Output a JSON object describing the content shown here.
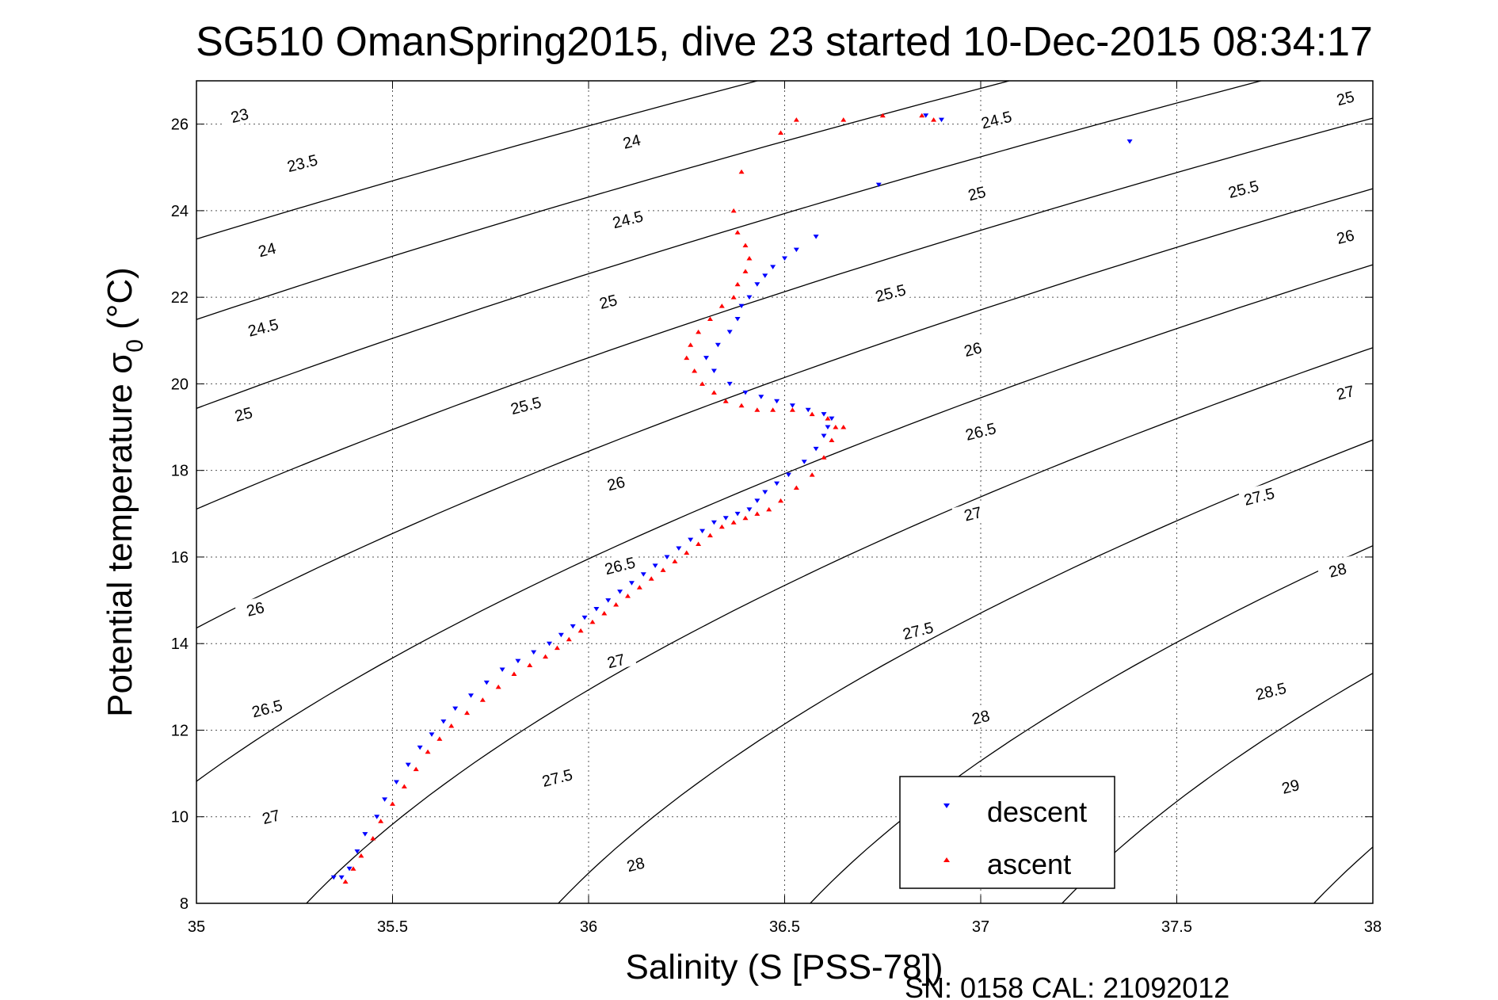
{
  "title": "SG510 OmanSpring2015, dive 23 started 10-Dec-2015 08:34:17",
  "footer": "SN: 0158  CAL: 21092012",
  "chart_data": {
    "type": "scatter",
    "title": "SG510 OmanSpring2015, dive 23 started 10-Dec-2015 08:34:17",
    "xlabel": "Salinity (S [PSS-78])",
    "ylabel_main": "Potential temperature σ",
    "ylabel_sub": "0",
    "ylabel_unit": " (°C)",
    "xlim": [
      35,
      38
    ],
    "ylim": [
      8,
      27
    ],
    "xticks": [
      35,
      35.5,
      36,
      36.5,
      37,
      37.5,
      38
    ],
    "xtick_labels": [
      "35",
      "35.5",
      "36",
      "36.5",
      "37",
      "37.5",
      "38"
    ],
    "yticks": [
      8,
      10,
      12,
      14,
      16,
      18,
      20,
      22,
      24,
      26
    ],
    "ytick_labels": [
      "8",
      "10",
      "12",
      "14",
      "16",
      "18",
      "20",
      "22",
      "24",
      "26"
    ],
    "grid": true,
    "legend_position": "bottom-right",
    "contour_levels": [
      23,
      23.5,
      24,
      24.5,
      25,
      25.5,
      26,
      26.5,
      27,
      27.5,
      28,
      28.5,
      29
    ],
    "contour_labels": [
      {
        "text": "23",
        "s": 35.11,
        "t": 26.2
      },
      {
        "text": "23.5",
        "s": 35.27,
        "t": 25.1
      },
      {
        "text": "24",
        "s": 35.18,
        "t": 23.1
      },
      {
        "text": "24.5",
        "s": 35.17,
        "t": 21.3
      },
      {
        "text": "25",
        "s": 35.12,
        "t": 19.3
      },
      {
        "text": "26",
        "s": 35.15,
        "t": 14.8
      },
      {
        "text": "26.5",
        "s": 35.18,
        "t": 12.5
      },
      {
        "text": "27",
        "s": 35.19,
        "t": 10.0
      },
      {
        "text": "24",
        "s": 36.11,
        "t": 25.6
      },
      {
        "text": "24.5",
        "s": 36.1,
        "t": 23.8
      },
      {
        "text": "25",
        "s": 36.05,
        "t": 21.9
      },
      {
        "text": "25.5",
        "s": 35.84,
        "t": 19.5
      },
      {
        "text": "26",
        "s": 36.07,
        "t": 17.7
      },
      {
        "text": "26.5",
        "s": 36.08,
        "t": 15.8
      },
      {
        "text": "27",
        "s": 36.07,
        "t": 13.6
      },
      {
        "text": "27.5",
        "s": 35.92,
        "t": 10.9
      },
      {
        "text": "28",
        "s": 36.12,
        "t": 8.9
      },
      {
        "text": "24.5",
        "s": 37.04,
        "t": 26.1
      },
      {
        "text": "25",
        "s": 36.99,
        "t": 24.4
      },
      {
        "text": "25.5",
        "s": 36.77,
        "t": 22.1
      },
      {
        "text": "26",
        "s": 36.98,
        "t": 20.8
      },
      {
        "text": "26.5",
        "s": 37.0,
        "t": 18.9
      },
      {
        "text": "27",
        "s": 36.98,
        "t": 17.0
      },
      {
        "text": "27.5",
        "s": 36.84,
        "t": 14.3
      },
      {
        "text": "28",
        "s": 37.0,
        "t": 12.3
      },
      {
        "text": "25",
        "s": 37.93,
        "t": 26.6
      },
      {
        "text": "25.5",
        "s": 37.67,
        "t": 24.5
      },
      {
        "text": "26",
        "s": 37.93,
        "t": 23.4
      },
      {
        "text": "27",
        "s": 37.93,
        "t": 19.8
      },
      {
        "text": "27.5",
        "s": 37.71,
        "t": 17.4
      },
      {
        "text": "28",
        "s": 37.91,
        "t": 15.7
      },
      {
        "text": "28.5",
        "s": 37.74,
        "t": 12.9
      },
      {
        "text": "29",
        "s": 37.79,
        "t": 10.7
      }
    ],
    "series": [
      {
        "name": "descent",
        "color": "#0000ff",
        "marker": "triangle-down",
        "x": [
          35.37,
          35.39,
          35.41,
          35.43,
          35.46,
          35.48,
          35.51,
          35.54,
          35.57,
          35.6,
          35.63,
          35.66,
          35.7,
          35.74,
          35.78,
          35.82,
          35.86,
          35.9,
          35.93,
          35.96,
          35.99,
          36.02,
          36.05,
          36.08,
          36.11,
          36.14,
          36.17,
          36.2,
          36.23,
          36.26,
          36.29,
          36.32,
          36.35,
          36.38,
          36.41,
          36.43,
          36.45,
          36.48,
          36.51,
          36.55,
          36.58,
          36.6,
          36.61,
          36.62,
          36.6,
          36.56,
          36.52,
          36.48,
          36.44,
          36.4,
          36.36,
          36.32,
          36.3,
          36.33,
          36.36,
          36.38,
          36.39,
          36.41,
          36.43,
          36.45,
          36.47,
          36.5,
          36.53,
          36.58,
          36.86,
          36.9,
          36.74,
          37.38,
          35.35
        ],
        "y": [
          8.6,
          8.8,
          9.2,
          9.6,
          10.0,
          10.4,
          10.8,
          11.2,
          11.6,
          11.9,
          12.2,
          12.5,
          12.8,
          13.1,
          13.4,
          13.6,
          13.8,
          14.0,
          14.2,
          14.4,
          14.6,
          14.8,
          15.0,
          15.2,
          15.4,
          15.6,
          15.8,
          16.0,
          16.2,
          16.4,
          16.6,
          16.8,
          16.9,
          17.0,
          17.1,
          17.3,
          17.5,
          17.7,
          17.9,
          18.2,
          18.5,
          18.8,
          19.0,
          19.2,
          19.3,
          19.4,
          19.5,
          19.6,
          19.7,
          19.8,
          20.0,
          20.3,
          20.6,
          20.9,
          21.2,
          21.5,
          21.8,
          22.0,
          22.3,
          22.5,
          22.7,
          22.9,
          23.1,
          23.4,
          26.2,
          26.1,
          24.6,
          25.6,
          8.6
        ]
      },
      {
        "name": "ascent",
        "color": "#ff0000",
        "marker": "triangle-up",
        "x": [
          35.38,
          35.4,
          35.42,
          35.45,
          35.47,
          35.5,
          35.53,
          35.56,
          35.59,
          35.62,
          35.65,
          35.69,
          35.73,
          35.77,
          35.81,
          35.85,
          35.89,
          35.92,
          35.95,
          35.98,
          36.01,
          36.04,
          36.07,
          36.1,
          36.13,
          36.16,
          36.19,
          36.22,
          36.25,
          36.28,
          36.31,
          36.34,
          36.37,
          36.4,
          36.43,
          36.46,
          36.49,
          36.53,
          36.57,
          36.6,
          36.62,
          36.63,
          36.61,
          36.57,
          36.52,
          36.47,
          36.43,
          36.39,
          36.35,
          36.32,
          36.29,
          36.27,
          36.25,
          36.26,
          36.28,
          36.31,
          36.34,
          36.37,
          36.38,
          36.4,
          36.41,
          36.4,
          36.38,
          36.37,
          36.39,
          36.49,
          36.53,
          36.65,
          36.75,
          36.85,
          36.88,
          36.65
        ],
        "y": [
          8.5,
          8.8,
          9.1,
          9.5,
          9.9,
          10.3,
          10.7,
          11.1,
          11.5,
          11.8,
          12.1,
          12.4,
          12.7,
          13.0,
          13.3,
          13.5,
          13.7,
          13.9,
          14.1,
          14.3,
          14.5,
          14.7,
          14.9,
          15.1,
          15.3,
          15.5,
          15.7,
          15.9,
          16.1,
          16.3,
          16.5,
          16.7,
          16.8,
          16.9,
          17.0,
          17.1,
          17.3,
          17.6,
          17.9,
          18.3,
          18.7,
          19.0,
          19.2,
          19.3,
          19.4,
          19.4,
          19.4,
          19.5,
          19.6,
          19.8,
          20.0,
          20.3,
          20.6,
          20.9,
          21.2,
          21.5,
          21.8,
          22.0,
          22.3,
          22.6,
          22.9,
          23.2,
          23.5,
          24.0,
          24.9,
          25.8,
          26.1,
          26.1,
          26.2,
          26.2,
          26.1,
          19.0
        ]
      }
    ]
  }
}
